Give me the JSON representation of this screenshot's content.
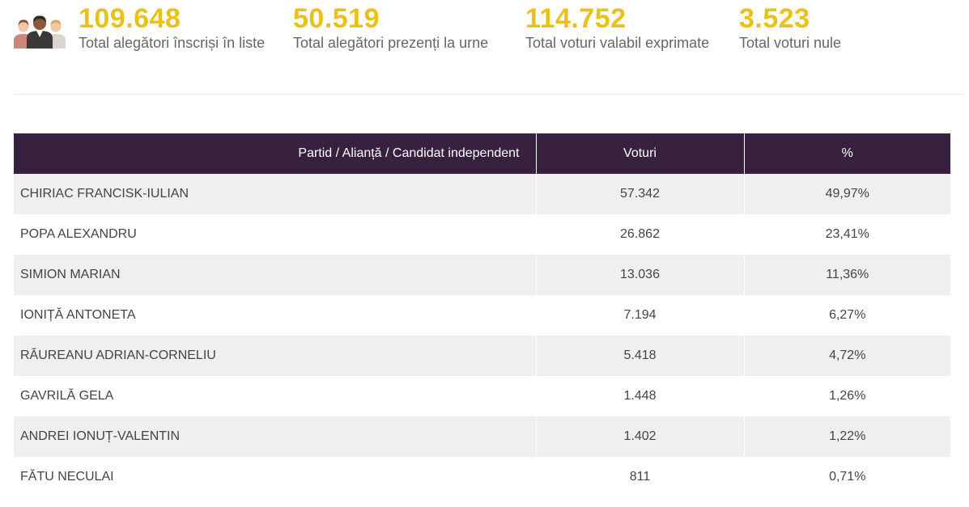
{
  "stats": [
    {
      "value": "109.648",
      "label": "Total alegători înscriși în liste"
    },
    {
      "value": "50.519",
      "label": "Total alegători prezenți la urne"
    },
    {
      "value": "114.752",
      "label": "Total voturi valabil exprimate"
    },
    {
      "value": "3.523",
      "label": "Total voturi nule"
    }
  ],
  "colors": {
    "accent": "#e8c21b",
    "header_bg": "#37213f",
    "row_alt": "#efefef"
  },
  "table": {
    "headers": {
      "name": "Partid / Alianță / Candidat independent",
      "votes": "Voturi",
      "percent": "%"
    },
    "rows": [
      {
        "name": "CHIRIAC FRANCISK-IULIAN",
        "votes": "57.342",
        "percent": "49,97%"
      },
      {
        "name": "POPA ALEXANDRU",
        "votes": "26.862",
        "percent": "23,41%"
      },
      {
        "name": "SIMION MARIAN",
        "votes": "13.036",
        "percent": "11,36%"
      },
      {
        "name": "IONIȚĂ ANTONETA",
        "votes": "7.194",
        "percent": "6,27%"
      },
      {
        "name": "RĂUREANU ADRIAN-CORNELIU",
        "votes": "5.418",
        "percent": "4,72%"
      },
      {
        "name": "GAVRILĂ GELA",
        "votes": "1.448",
        "percent": "1,26%"
      },
      {
        "name": "ANDREI IONUȚ-VALENTIN",
        "votes": "1.402",
        "percent": "1,22%"
      },
      {
        "name": "FĂTU NECULAI",
        "votes": "811",
        "percent": "0,71%"
      }
    ]
  }
}
